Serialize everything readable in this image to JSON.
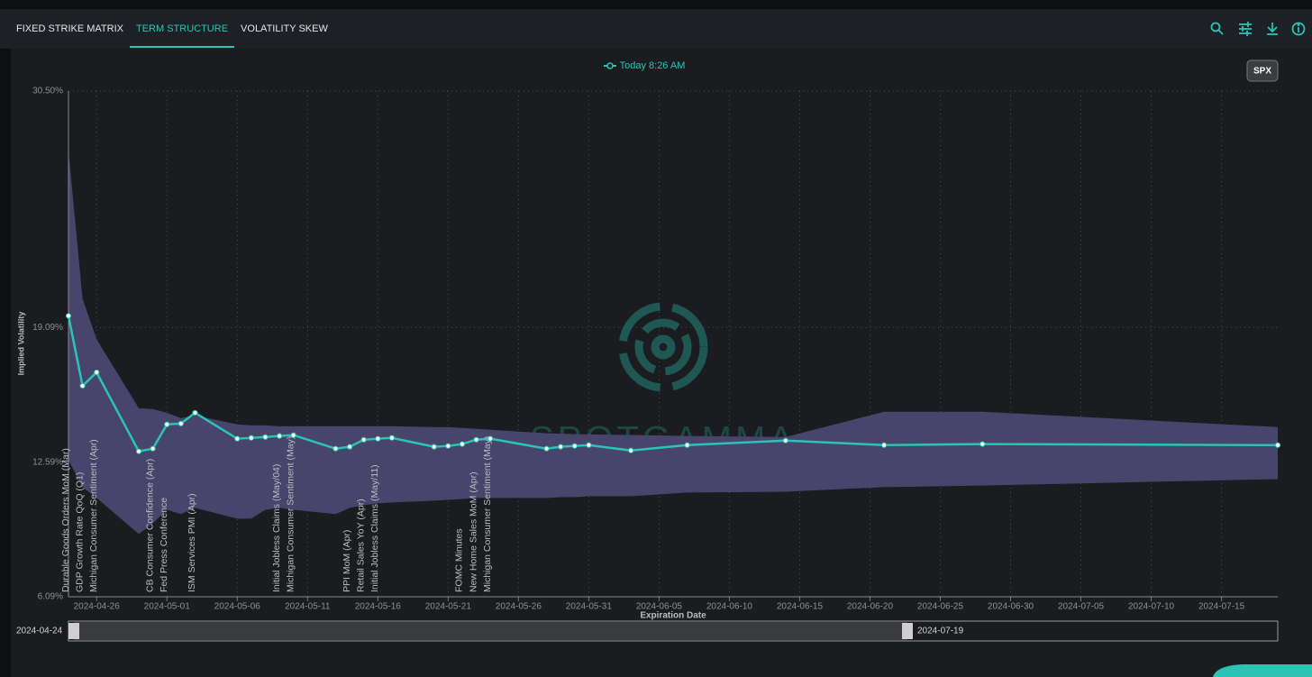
{
  "tabs": [
    "FIXED STRIKE MATRIX",
    "TERM STRUCTURE",
    "VOLATILITY SKEW"
  ],
  "symbol_button": "SPX",
  "watermark": "SPOTGAMMA",
  "chart_data": {
    "type": "line",
    "xlabel": "Expiration Date",
    "ylabel": "Implied Volatility",
    "x": [
      "2024-04-24",
      "2024-04-25",
      "2024-04-26",
      "2024-04-29",
      "2024-04-30",
      "2024-05-01",
      "2024-05-02",
      "2024-05-03",
      "2024-05-06",
      "2024-05-07",
      "2024-05-08",
      "2024-05-09",
      "2024-05-10",
      "2024-05-13",
      "2024-05-14",
      "2024-05-15",
      "2024-05-16",
      "2024-05-17",
      "2024-05-20",
      "2024-05-21",
      "2024-05-22",
      "2024-05-23",
      "2024-05-24",
      "2024-05-28",
      "2024-05-29",
      "2024-05-30",
      "2024-05-31",
      "2024-06-03",
      "2024-06-07",
      "2024-06-14",
      "2024-06-21",
      "2024-06-28",
      "2024-07-19"
    ],
    "series": [
      {
        "name": "Today 8:26 AM",
        "color": "#2bc4b4",
        "values": [
          19.65,
          16.27,
          16.92,
          13.11,
          13.24,
          14.41,
          14.45,
          14.97,
          13.72,
          13.76,
          13.8,
          13.85,
          13.89,
          13.24,
          13.33,
          13.67,
          13.72,
          13.76,
          13.33,
          13.37,
          13.46,
          13.67,
          13.72,
          13.24,
          13.33,
          13.37,
          13.41,
          13.15,
          13.41,
          13.63,
          13.41,
          13.46,
          13.41
        ]
      }
    ],
    "band": {
      "color": "#47456c",
      "upper": [
        27.62,
        20.47,
        18.52,
        15.19,
        15.15,
        14.97,
        14.71,
        14.84,
        14.41,
        14.36,
        14.36,
        14.32,
        14.32,
        14.32,
        14.32,
        14.32,
        14.32,
        14.32,
        14.28,
        14.28,
        14.24,
        14.2,
        14.15,
        13.98,
        13.96,
        13.94,
        13.93,
        13.9,
        13.85,
        13.8,
        15.02,
        15.02,
        14.28
      ],
      "lower": [
        12.68,
        11.38,
        10.86,
        9.12,
        9.64,
        10.29,
        10.08,
        10.38,
        9.86,
        9.86,
        10.29,
        10.38,
        10.29,
        10.08,
        10.38,
        10.51,
        10.6,
        10.64,
        10.73,
        10.77,
        10.81,
        10.86,
        10.86,
        10.86,
        10.9,
        10.9,
        10.94,
        10.94,
        11.12,
        11.16,
        11.38,
        11.46,
        11.77
      ]
    },
    "annotations": [
      {
        "x": "2024-04-24",
        "label": "Durable Goods Orders MoM (Mar)"
      },
      {
        "x": "2024-04-25",
        "label": "GDP Growth Rate QoQ (Q1)"
      },
      {
        "x": "2024-04-26",
        "label": "Michigan Consumer Sentiment (Apr)"
      },
      {
        "x": "2024-04-30",
        "label": "CB Consumer Confidence (Apr)"
      },
      {
        "x": "2024-05-01",
        "label": "Fed Press Conference"
      },
      {
        "x": "2024-05-03",
        "label": "ISM Services PMI (Apr)"
      },
      {
        "x": "2024-05-09",
        "label": "Initial Jobless Claims (May/04)"
      },
      {
        "x": "2024-05-10",
        "label": "Michigan Consumer Sentiment (May)"
      },
      {
        "x": "2024-05-14",
        "label": "PPI MoM (Apr)"
      },
      {
        "x": "2024-05-15",
        "label": "Retail Sales YoY (Apr)"
      },
      {
        "x": "2024-05-16",
        "label": "Initial Jobless Claims (May/11)"
      },
      {
        "x": "2024-05-22",
        "label": "FOMC Minutes"
      },
      {
        "x": "2024-05-23",
        "label": "New Home Sales MoM (Apr)"
      },
      {
        "x": "2024-05-24",
        "label": "Michigan Consumer Sentiment (May)"
      }
    ],
    "xlim": [
      "2024-04-24",
      "2024-07-19"
    ],
    "xticks": [
      "2024-04-26",
      "2024-05-01",
      "2024-05-06",
      "2024-05-11",
      "2024-05-16",
      "2024-05-21",
      "2024-05-26",
      "2024-05-31",
      "2024-06-05",
      "2024-06-10",
      "2024-06-15",
      "2024-06-20",
      "2024-06-25",
      "2024-06-30",
      "2024-07-05",
      "2024-07-10",
      "2024-07-15"
    ],
    "ylim": [
      6.09,
      30.5
    ],
    "yticks": [
      {
        "value": 6.09,
        "label": "6.09%"
      },
      {
        "value": 12.59,
        "label": "12.59%"
      },
      {
        "value": 19.09,
        "label": "19.09%"
      },
      {
        "value": 30.5,
        "label": "30.50%"
      }
    ],
    "grid": true
  }
}
